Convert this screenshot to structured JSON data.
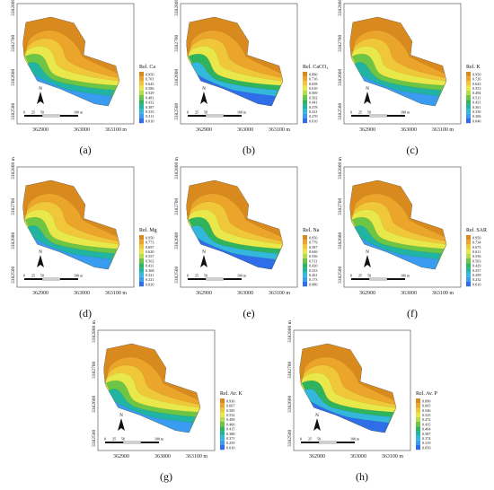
{
  "figure": {
    "panels": [
      {
        "caption": "(a)",
        "legend_title": "Rel. Ca",
        "legend_values": [
          "0.950",
          "0.701",
          "0.645",
          "0.586",
          "0.529",
          "0.481",
          "0.432",
          "0.387",
          "0.335",
          "0.311",
          "0.010"
        ],
        "x_ticks": [
          "362900",
          "363000",
          "363100 m"
        ],
        "y_ticks": [
          "3382800 m",
          "3382700",
          "3382600",
          "3382500"
        ],
        "scale_ticks": [
          "0",
          "25",
          "50",
          "100 m"
        ]
      },
      {
        "caption": "(b)",
        "legend_title": "Rel. CaCO₃",
        "legend_values": [
          "0.890",
          "0.716",
          "0.658",
          "0.610",
          "0.569",
          "0.502",
          "0.441",
          "0.378",
          "0.321",
          "0.270",
          "0.010"
        ],
        "x_ticks": [
          "362900",
          "363000",
          "363100 m"
        ],
        "y_ticks": [
          "3382800 m",
          "3382700",
          "3382600",
          "3382500"
        ],
        "scale_ticks": [
          "0",
          "25",
          "50",
          "100 m"
        ]
      },
      {
        "caption": "(c)",
        "legend_title": "Rel. K",
        "legend_values": [
          "0.950",
          "0.726",
          "0.643",
          "0.553",
          "0.494",
          "0.511",
          "0.431",
          "0.361",
          "0.330",
          "0.306",
          "0.040"
        ],
        "x_ticks": [
          "362900",
          "363000",
          "363100 m"
        ],
        "y_ticks": [
          "3382800 m",
          "3382700",
          "3382600",
          "3382500"
        ],
        "scale_ticks": [
          "0",
          "25",
          "50",
          "100 m"
        ]
      },
      {
        "caption": "(d)",
        "legend_title": "Rel. Mg",
        "legend_values": [
          "0.950",
          "0.773",
          "0.697",
          "0.620",
          "0.557",
          "0.502",
          "0.431",
          "0.368",
          "0.321",
          "0.221",
          "0.020"
        ],
        "x_ticks": [
          "362900",
          "363000",
          "363100 m"
        ],
        "y_ticks": [
          "3382800 m",
          "3382700",
          "3382600",
          "3382500"
        ],
        "scale_ticks": [
          "0",
          "25",
          "50",
          "100 m"
        ]
      },
      {
        "caption": "(e)",
        "legend_title": "Rel. Na",
        "legend_values": [
          "0.950",
          "0.779",
          "0.587",
          "0.646",
          "0.556",
          "0.511",
          "0.420",
          "0.333",
          "0.261",
          "0.173",
          "0.080"
        ],
        "x_ticks": [
          "362900",
          "363000",
          "363100 m"
        ],
        "y_ticks": [
          "3382800 m",
          "3382700",
          "3382600",
          "3382500"
        ],
        "scale_ticks": [
          "0",
          "25",
          "50",
          "100 m"
        ]
      },
      {
        "caption": "(f)",
        "legend_title": "Rel. SAR",
        "legend_values": [
          "0.950",
          "0.734",
          "0.675",
          "0.611",
          "0.556",
          "0.503",
          "0.429",
          "0.357",
          "0.299",
          "0.232",
          "0.010"
        ],
        "x_ticks": [
          "362900",
          "363000",
          "363100 m"
        ],
        "y_ticks": [
          "3382800 m",
          "3382700",
          "3382600",
          "3382500"
        ],
        "scale_ticks": [
          "0",
          "25",
          "50",
          "100 m"
        ]
      },
      {
        "caption": "(g)",
        "legend_title": "Rel. Av. K",
        "legend_values": [
          "0.930",
          "0.667",
          "0.585",
          "0.532",
          "0.499",
          "0.466",
          "0.415",
          "0.388",
          "0.371",
          "0.259",
          "0.010"
        ],
        "x_ticks": [
          "362900",
          "363000",
          "363100 m"
        ],
        "y_ticks": [
          "3382800 m",
          "3382700",
          "3382600",
          "3382500"
        ],
        "scale_ticks": [
          "0",
          "25",
          "50",
          "100 m"
        ]
      },
      {
        "caption": "(h)",
        "legend_title": "Rel. Av. P",
        "legend_values": [
          "0.890",
          "0.605",
          "0.546",
          "0.525",
          "0.472",
          "0.435",
          "0.404",
          "0.387",
          "0.374",
          "0.319",
          "0.050"
        ],
        "x_ticks": [
          "362900",
          "363000",
          "363100 m"
        ],
        "y_ticks": [
          "3382800 m",
          "3382700",
          "3382600",
          "3382500"
        ],
        "scale_ticks": [
          "0",
          "25",
          "50",
          "100 m"
        ]
      }
    ],
    "north_label": "N",
    "legend_colors": [
      "#d98a1e",
      "#eaa52a",
      "#f1c73a",
      "#e8e84a",
      "#b5dc4a",
      "#6cc544",
      "#2fb35c",
      "#22b4a2",
      "#33b8dc",
      "#3a9cf0",
      "#2f6ee8"
    ]
  }
}
